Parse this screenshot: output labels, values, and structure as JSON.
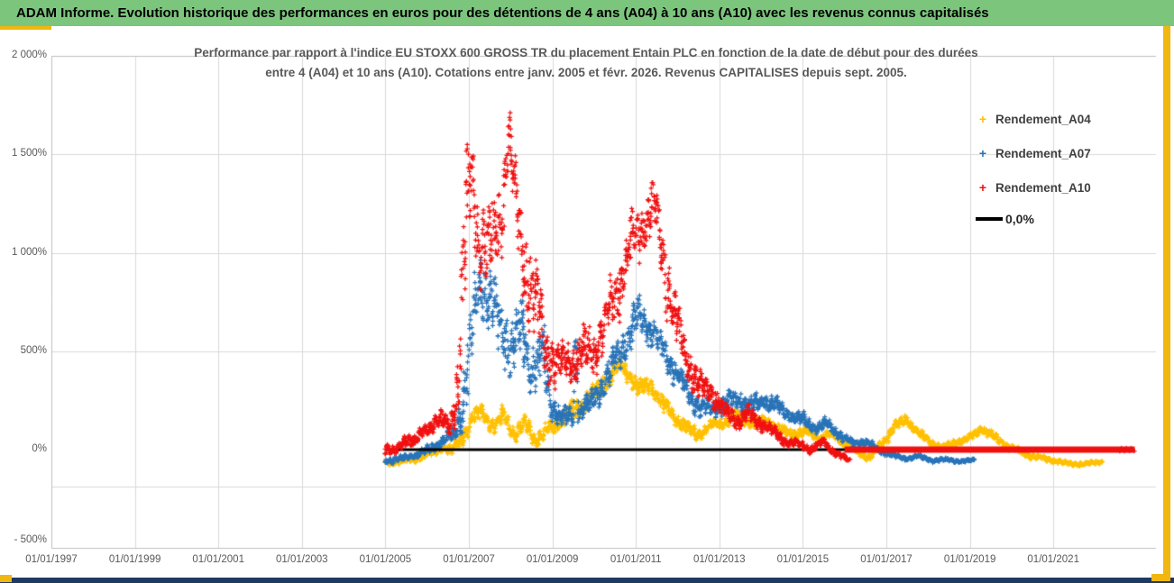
{
  "header": {
    "title": "ADAM Informe. Evolution historique des performances en euros pour des détentions de 4 ans (A04) à 10 ans (A10) avec les revenus connus capitalisés"
  },
  "chart": {
    "title_line1": "Performance par rapport à l'indice EU STOXX 600 GROSS TR  du placement Entain PLC en fonction de la date de début pour des durées",
    "title_line2": "entre 4 (A04) et 10 ans (A10). Cotations entre janv. 2005 et févr. 2026. Revenus CAPITALISES depuis sept. 2005.",
    "legend": [
      {
        "label": "Rendement_A04",
        "color": "#FFC000",
        "marker": "+"
      },
      {
        "label": "Rendement_A07",
        "color": "#2873B8",
        "marker": "+"
      },
      {
        "label": "Rendement_A10",
        "color": "#F01010",
        "marker": "+"
      },
      {
        "label": "0,0%",
        "color": "#000000",
        "marker": "line"
      }
    ]
  },
  "chart_data": {
    "type": "scatter",
    "title": "Performance par rapport à l'indice EU STOXX 600 GROSS TR du placement Entain PLC en fonction de la date de début pour des durées entre 4 (A04) et 10 ans (A10). Cotations entre janv. 2005 et févr. 2026. Revenus CAPITALISES depuis sept. 2005.",
    "x_axis": {
      "tick_labels": [
        "01/01/1997",
        "01/01/1999",
        "01/01/2001",
        "01/01/2003",
        "01/01/2005",
        "01/01/2007",
        "01/01/2009",
        "01/01/2011",
        "01/01/2013",
        "01/01/2015",
        "01/01/2017",
        "01/01/2019",
        "01/01/2021"
      ],
      "tick_years": [
        1997,
        1999,
        2001,
        2003,
        2005,
        2007,
        2009,
        2011,
        2013,
        2015,
        2017,
        2019,
        2021
      ],
      "range_years": [
        1997,
        2023.5
      ],
      "grid": true
    },
    "y_axis": {
      "tick_labels": [
        "2 000%",
        "1 500%",
        "1 000%",
        "500%",
        "0%",
        "- 500%"
      ],
      "tick_values": [
        2000,
        1500,
        1000,
        500,
        0,
        -500
      ],
      "range": [
        -500,
        2000
      ],
      "unit": "%",
      "grid": true
    },
    "legend_position": "right",
    "series": [
      {
        "name": "Rendement_A04",
        "color": "#FFC000",
        "marker": "+",
        "start_year": 2005.0,
        "end_year": 2022.17,
        "trend_points": [
          [
            2005.0,
            -70,
            15
          ],
          [
            2005.4,
            -60,
            15
          ],
          [
            2005.8,
            -45,
            18
          ],
          [
            2006.1,
            -15,
            25
          ],
          [
            2006.35,
            15,
            30
          ],
          [
            2006.6,
            -10,
            30
          ],
          [
            2006.85,
            60,
            45
          ],
          [
            2007.1,
            160,
            55
          ],
          [
            2007.35,
            190,
            55
          ],
          [
            2007.6,
            110,
            50
          ],
          [
            2007.85,
            170,
            55
          ],
          [
            2008.1,
            80,
            50
          ],
          [
            2008.35,
            130,
            55
          ],
          [
            2008.6,
            50,
            45
          ],
          [
            2008.85,
            90,
            50
          ],
          [
            2009.1,
            130,
            50
          ],
          [
            2009.4,
            180,
            55
          ],
          [
            2009.7,
            220,
            55
          ],
          [
            2010.0,
            280,
            60
          ],
          [
            2010.3,
            350,
            60
          ],
          [
            2010.6,
            420,
            45
          ],
          [
            2010.85,
            380,
            50
          ],
          [
            2011.1,
            300,
            55
          ],
          [
            2011.35,
            340,
            50
          ],
          [
            2011.6,
            240,
            50
          ],
          [
            2011.9,
            170,
            45
          ],
          [
            2012.2,
            110,
            40
          ],
          [
            2012.5,
            80,
            35
          ],
          [
            2012.8,
            120,
            35
          ],
          [
            2013.1,
            140,
            35
          ],
          [
            2013.45,
            170,
            35
          ],
          [
            2013.8,
            130,
            30
          ],
          [
            2014.1,
            150,
            30
          ],
          [
            2014.45,
            100,
            28
          ],
          [
            2014.8,
            80,
            28
          ],
          [
            2015.1,
            90,
            28
          ],
          [
            2015.4,
            60,
            25
          ],
          [
            2015.7,
            80,
            25
          ],
          [
            2016.0,
            30,
            22
          ],
          [
            2016.3,
            -10,
            20
          ],
          [
            2016.6,
            -40,
            18
          ],
          [
            2016.9,
            30,
            25
          ],
          [
            2017.2,
            120,
            30
          ],
          [
            2017.5,
            150,
            30
          ],
          [
            2017.8,
            80,
            25
          ],
          [
            2018.1,
            30,
            22
          ],
          [
            2018.4,
            10,
            20
          ],
          [
            2018.7,
            40,
            22
          ],
          [
            2019.0,
            60,
            25
          ],
          [
            2019.3,
            110,
            28
          ],
          [
            2019.6,
            60,
            25
          ],
          [
            2019.9,
            20,
            22
          ],
          [
            2020.2,
            -10,
            20
          ],
          [
            2020.5,
            -35,
            18
          ],
          [
            2020.9,
            -50,
            15
          ],
          [
            2021.3,
            -70,
            13
          ],
          [
            2021.7,
            -75,
            12
          ],
          [
            2022.0,
            -65,
            12
          ],
          [
            2022.17,
            -60,
            10
          ]
        ]
      },
      {
        "name": "Rendement_A07",
        "color": "#2873B8",
        "marker": "+",
        "start_year": 2005.0,
        "end_year": 2019.12,
        "trend_points": [
          [
            2005.0,
            -55,
            18
          ],
          [
            2005.4,
            -45,
            18
          ],
          [
            2005.8,
            -25,
            20
          ],
          [
            2006.1,
            10,
            28
          ],
          [
            2006.4,
            45,
            35
          ],
          [
            2006.65,
            80,
            45
          ],
          [
            2006.85,
            220,
            140
          ],
          [
            2007.05,
            550,
            230
          ],
          [
            2007.3,
            900,
            200
          ],
          [
            2007.5,
            750,
            230
          ],
          [
            2007.75,
            600,
            220
          ],
          [
            2008.0,
            520,
            200
          ],
          [
            2008.25,
            600,
            190
          ],
          [
            2008.5,
            420,
            160
          ],
          [
            2008.75,
            480,
            170
          ],
          [
            2009.0,
            220,
            90
          ],
          [
            2009.25,
            160,
            60
          ],
          [
            2009.5,
            170,
            60
          ],
          [
            2009.54,
            520,
            80
          ],
          [
            2009.58,
            540,
            80
          ],
          [
            2009.62,
            190,
            60
          ],
          [
            2009.9,
            230,
            70
          ],
          [
            2010.2,
            330,
            90
          ],
          [
            2010.5,
            440,
            100
          ],
          [
            2010.8,
            580,
            110
          ],
          [
            2011.1,
            680,
            110
          ],
          [
            2011.35,
            620,
            100
          ],
          [
            2011.6,
            520,
            100
          ],
          [
            2011.9,
            420,
            90
          ],
          [
            2012.2,
            300,
            70
          ],
          [
            2012.5,
            220,
            60
          ],
          [
            2012.8,
            200,
            55
          ],
          [
            2013.1,
            230,
            55
          ],
          [
            2013.45,
            260,
            55
          ],
          [
            2013.8,
            220,
            50
          ],
          [
            2014.1,
            250,
            50
          ],
          [
            2014.4,
            220,
            45
          ],
          [
            2014.7,
            170,
            40
          ],
          [
            2015.0,
            150,
            40
          ],
          [
            2015.3,
            110,
            35
          ],
          [
            2015.6,
            130,
            35
          ],
          [
            2015.9,
            70,
            30
          ],
          [
            2016.2,
            30,
            25
          ],
          [
            2016.5,
            40,
            22
          ],
          [
            2016.8,
            0,
            18
          ],
          [
            2017.1,
            -25,
            15
          ],
          [
            2017.45,
            -45,
            12
          ],
          [
            2017.8,
            -35,
            12
          ],
          [
            2018.1,
            -55,
            11
          ],
          [
            2018.5,
            -50,
            10
          ],
          [
            2018.8,
            -62,
            10
          ],
          [
            2019.12,
            -50,
            8
          ]
        ]
      },
      {
        "name": "Rendement_A10",
        "color": "#F01010",
        "marker": "+",
        "start_year": 2005.0,
        "end_year": 2016.12,
        "trend_points": [
          [
            2005.0,
            15,
            35
          ],
          [
            2005.25,
            -12,
            28
          ],
          [
            2005.5,
            60,
            45
          ],
          [
            2005.75,
            45,
            40
          ],
          [
            2006.0,
            110,
            50
          ],
          [
            2006.3,
            150,
            60
          ],
          [
            2006.55,
            110,
            55
          ],
          [
            2006.75,
            350,
            220
          ],
          [
            2006.9,
            1000,
            420
          ],
          [
            2007.05,
            1380,
            230
          ],
          [
            2007.25,
            1080,
            260
          ],
          [
            2007.5,
            1000,
            230
          ],
          [
            2007.75,
            1150,
            280
          ],
          [
            2007.95,
            1600,
            160
          ],
          [
            2008.1,
            1280,
            260
          ],
          [
            2008.35,
            950,
            260
          ],
          [
            2008.6,
            740,
            280
          ],
          [
            2008.85,
            520,
            180
          ],
          [
            2009.1,
            420,
            120
          ],
          [
            2009.4,
            450,
            130
          ],
          [
            2009.7,
            480,
            140
          ],
          [
            2010.0,
            520,
            150
          ],
          [
            2010.3,
            650,
            160
          ],
          [
            2010.6,
            850,
            180
          ],
          [
            2010.9,
            1050,
            160
          ],
          [
            2011.2,
            1140,
            170
          ],
          [
            2011.45,
            1250,
            140
          ],
          [
            2011.7,
            900,
            200
          ],
          [
            2011.95,
            650,
            150
          ],
          [
            2012.2,
            470,
            110
          ],
          [
            2012.5,
            320,
            90
          ],
          [
            2012.8,
            300,
            80
          ],
          [
            2013.1,
            200,
            60
          ],
          [
            2013.4,
            150,
            50
          ],
          [
            2013.7,
            180,
            50
          ],
          [
            2014.0,
            130,
            40
          ],
          [
            2014.3,
            90,
            35
          ],
          [
            2014.6,
            40,
            30
          ],
          [
            2014.9,
            28,
            24
          ],
          [
            2015.2,
            0,
            24
          ],
          [
            2015.5,
            38,
            22
          ],
          [
            2015.8,
            -20,
            18
          ],
          [
            2016.0,
            -42,
            14
          ],
          [
            2016.12,
            -55,
            10
          ]
        ]
      }
    ],
    "reference_lines": [
      {
        "name": "0,0%",
        "color": "#000000",
        "value": 0,
        "from_year": 2005.0,
        "to_year": 2022.95,
        "thickness": 3
      },
      {
        "name": "zero-red-overlay",
        "color": "#F01010",
        "value": 0,
        "from_year": 2016.0,
        "to_year": 2022.95,
        "thickness": 7
      }
    ]
  },
  "colors": {
    "header_green": "#7cc57d",
    "accent_gold": "#f2b610",
    "bottom_navy": "#1f3a60",
    "grid": "#d9d9d9",
    "axis_line": "#bfbfbf",
    "text_gray": "#595959"
  }
}
